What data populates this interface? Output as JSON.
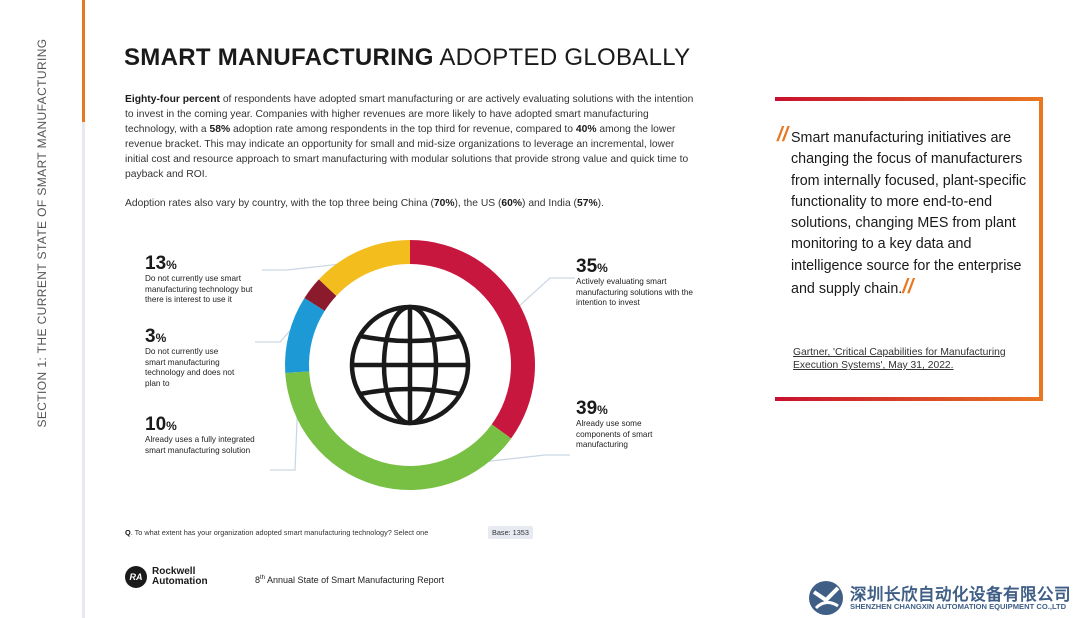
{
  "side_label": "SECTION 1: THE CURRENT STATE OF SMART MANUFACTURING",
  "title": {
    "bold": "SMART MANUFACTURING",
    "light": " ADOPTED GLOBALLY"
  },
  "intro": {
    "p1_bold1": "Eighty-four percent",
    "p1_text1": " of respondents have adopted smart manufacturing or are actively evaluating solutions with the intention to invest in the coming year. Companies with higher revenues are more likely to have adopted smart manufacturing technology, with a ",
    "p1_bold2": "58%",
    "p1_text2": " adoption rate among respondents in the top third for revenue, compared to ",
    "p1_bold3": "40%",
    "p1_text3": " among the lower revenue bracket. This may indicate an opportunity for small and mid-size organizations to leverage an incremental, lower initial cost and resource approach to smart manufacturing with modular solutions that provide strong value and quick time to payback and ROI.",
    "p2_text1": "Adoption rates also vary by country, with the top three being China (",
    "p2_bold1": "70%",
    "p2_text2": "), the US (",
    "p2_bold2": "60%",
    "p2_text3": ") and India (",
    "p2_bold3": "57%",
    "p2_text4": ")."
  },
  "chart_data": {
    "type": "pie",
    "donut": true,
    "unit": "%",
    "slices": [
      {
        "value": 35,
        "pct": "35",
        "label": "Actively evaluating smart manufacturing solutions with the intention to invest",
        "color": "#c8173f"
      },
      {
        "value": 39,
        "pct": "39",
        "label": "Already use some components of smart manufacturing",
        "color": "#78c043"
      },
      {
        "value": 10,
        "pct": "10",
        "label": "Already uses a fully integrated smart manufacturing solution",
        "color": "#1d9ad6"
      },
      {
        "value": 3,
        "pct": "3",
        "label": "Do not currently use smart manufacturing technology and does not plan to",
        "color": "#8c1a2d"
      },
      {
        "value": 13,
        "pct": "13",
        "label": "Do not currently use smart manufacturing technology but there is interest to use it",
        "color": "#f3bd1d"
      }
    ],
    "center_icon": "globe-icon"
  },
  "quote": {
    "text": "Smart manufacturing initiatives are changing the focus of manufacturers from internally focused, plant-specific functionality to more end-to-end solutions, changing MES from plant monitoring to a key data and intelligence source for the enterprise and supply chain.",
    "source": "Gartner, 'Critical Capabilities for Manufacturing Execution Systems', May 31, 2022."
  },
  "footnote": {
    "q": "Q",
    "text": ". To what extent has your organization adopted smart manufacturing technology? Select one",
    "base": "Base: 1353"
  },
  "footer": {
    "logo_mark": "RA",
    "brand_line1": "Rockwell",
    "brand_line2": "Automation",
    "report_num": "8",
    "report_sup": "th",
    "report_text": " Annual State of Smart Manufacturing Report",
    "cn_company": "深圳长欣自动化设备有限公司",
    "en_company": "SHENZHEN CHANGXIN AUTOMATION EQUIPMENT CO.,LTD"
  },
  "colors": {
    "accent_orange": "#e87722",
    "accent_red": "#c8102e",
    "company_blue": "#3f5f86"
  }
}
